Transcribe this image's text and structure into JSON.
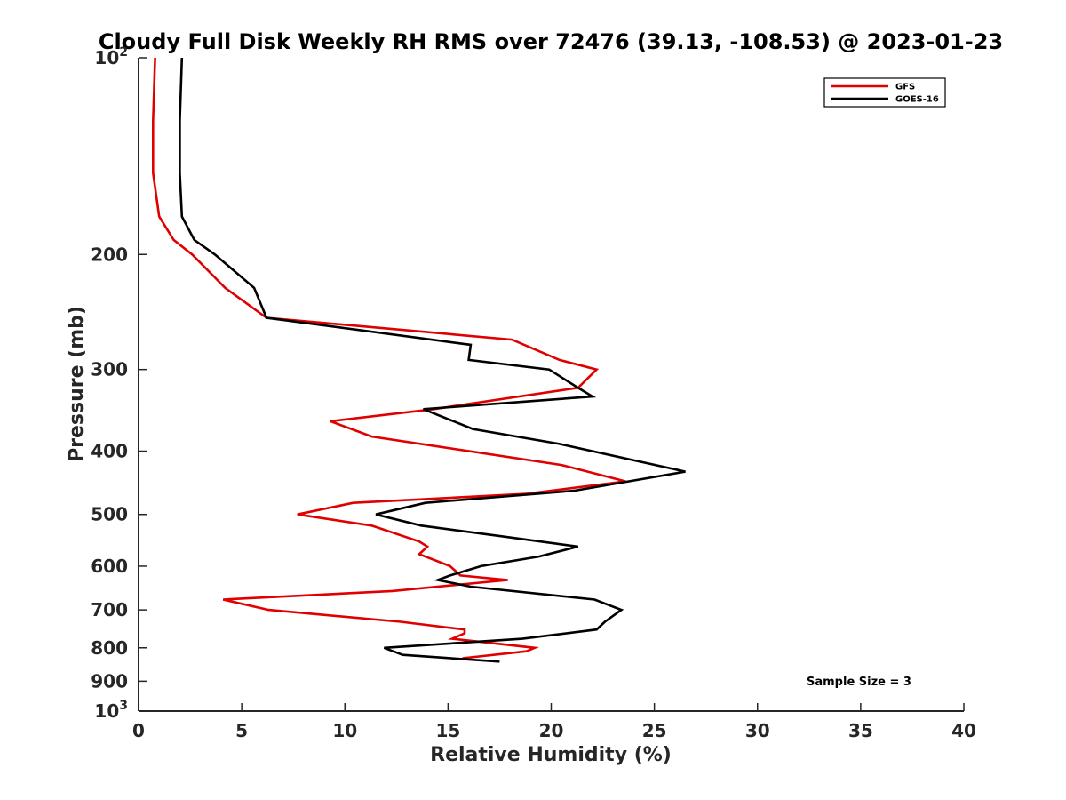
{
  "chart_data": {
    "type": "line",
    "title": "Cloudy Full Disk Weekly RH RMS over 72476 (39.13, -108.53) @ 2023-01-23",
    "xlabel": "Relative Humidity (%)",
    "ylabel": "Pressure (mb)",
    "xlim": [
      0,
      40
    ],
    "ylim": [
      100,
      1000
    ],
    "yscale": "log",
    "y_reversed": true,
    "grid": false,
    "legend_position": "top-right",
    "x_ticks": [
      "0",
      "5",
      "10",
      "15",
      "20",
      "25",
      "30",
      "35",
      "40"
    ],
    "y_ticks": [
      {
        "value": 100,
        "base": "10",
        "exp": "2"
      },
      {
        "value": 200,
        "label": "200"
      },
      {
        "value": 300,
        "label": "300"
      },
      {
        "value": 400,
        "label": "400"
      },
      {
        "value": 500,
        "label": "500"
      },
      {
        "value": 600,
        "label": "600"
      },
      {
        "value": 700,
        "label": "700"
      },
      {
        "value": 800,
        "label": "800"
      },
      {
        "value": 900,
        "label": "900"
      },
      {
        "value": 1000,
        "base": "10",
        "exp": "3"
      }
    ],
    "series": [
      {
        "name": "GFS",
        "color": "#e00000",
        "points": [
          [
            0.8,
            100
          ],
          [
            0.7,
            125
          ],
          [
            0.7,
            150
          ],
          [
            1.0,
            175
          ],
          [
            1.7,
            190
          ],
          [
            2.6,
            200
          ],
          [
            4.2,
            225
          ],
          [
            6.2,
            250
          ],
          [
            18.1,
            270
          ],
          [
            20.4,
            290
          ],
          [
            22.2,
            300
          ],
          [
            21.3,
            320
          ],
          [
            14.3,
            345
          ],
          [
            9.3,
            360
          ],
          [
            11.3,
            380
          ],
          [
            20.5,
            420
          ],
          [
            23.6,
            445
          ],
          [
            18.8,
            465
          ],
          [
            10.4,
            480
          ],
          [
            7.7,
            500
          ],
          [
            11.3,
            520
          ],
          [
            13.6,
            550
          ],
          [
            14.0,
            560
          ],
          [
            13.6,
            575
          ],
          [
            15.1,
            600
          ],
          [
            15.6,
            620
          ],
          [
            17.9,
            630
          ],
          [
            12.3,
            655
          ],
          [
            4.1,
            675
          ],
          [
            6.3,
            700
          ],
          [
            12.7,
            730
          ],
          [
            15.8,
            750
          ],
          [
            15.8,
            760
          ],
          [
            15.2,
            775
          ],
          [
            19.2,
            800
          ],
          [
            18.8,
            810
          ],
          [
            15.7,
            830
          ]
        ]
      },
      {
        "name": "GOES-16",
        "color": "#000000",
        "points": [
          [
            2.1,
            100
          ],
          [
            2.0,
            125
          ],
          [
            2.0,
            150
          ],
          [
            2.1,
            175
          ],
          [
            2.7,
            190
          ],
          [
            3.7,
            200
          ],
          [
            5.6,
            225
          ],
          [
            6.2,
            250
          ],
          [
            16.1,
            275
          ],
          [
            16.0,
            290
          ],
          [
            19.9,
            300
          ],
          [
            21.3,
            320
          ],
          [
            22.0,
            330
          ],
          [
            13.8,
            345
          ],
          [
            16.2,
            370
          ],
          [
            20.4,
            390
          ],
          [
            26.5,
            430
          ],
          [
            21.1,
            460
          ],
          [
            13.9,
            480
          ],
          [
            11.5,
            500
          ],
          [
            13.7,
            520
          ],
          [
            17.6,
            540
          ],
          [
            21.3,
            560
          ],
          [
            19.4,
            580
          ],
          [
            16.6,
            600
          ],
          [
            15.1,
            620
          ],
          [
            14.5,
            630
          ],
          [
            16.1,
            645
          ],
          [
            22.1,
            675
          ],
          [
            23.4,
            700
          ],
          [
            22.6,
            730
          ],
          [
            22.2,
            750
          ],
          [
            18.6,
            775
          ],
          [
            11.9,
            800
          ],
          [
            12.8,
            820
          ],
          [
            17.5,
            840
          ]
        ]
      }
    ],
    "annotations": [
      "Sample Size = 3"
    ]
  }
}
